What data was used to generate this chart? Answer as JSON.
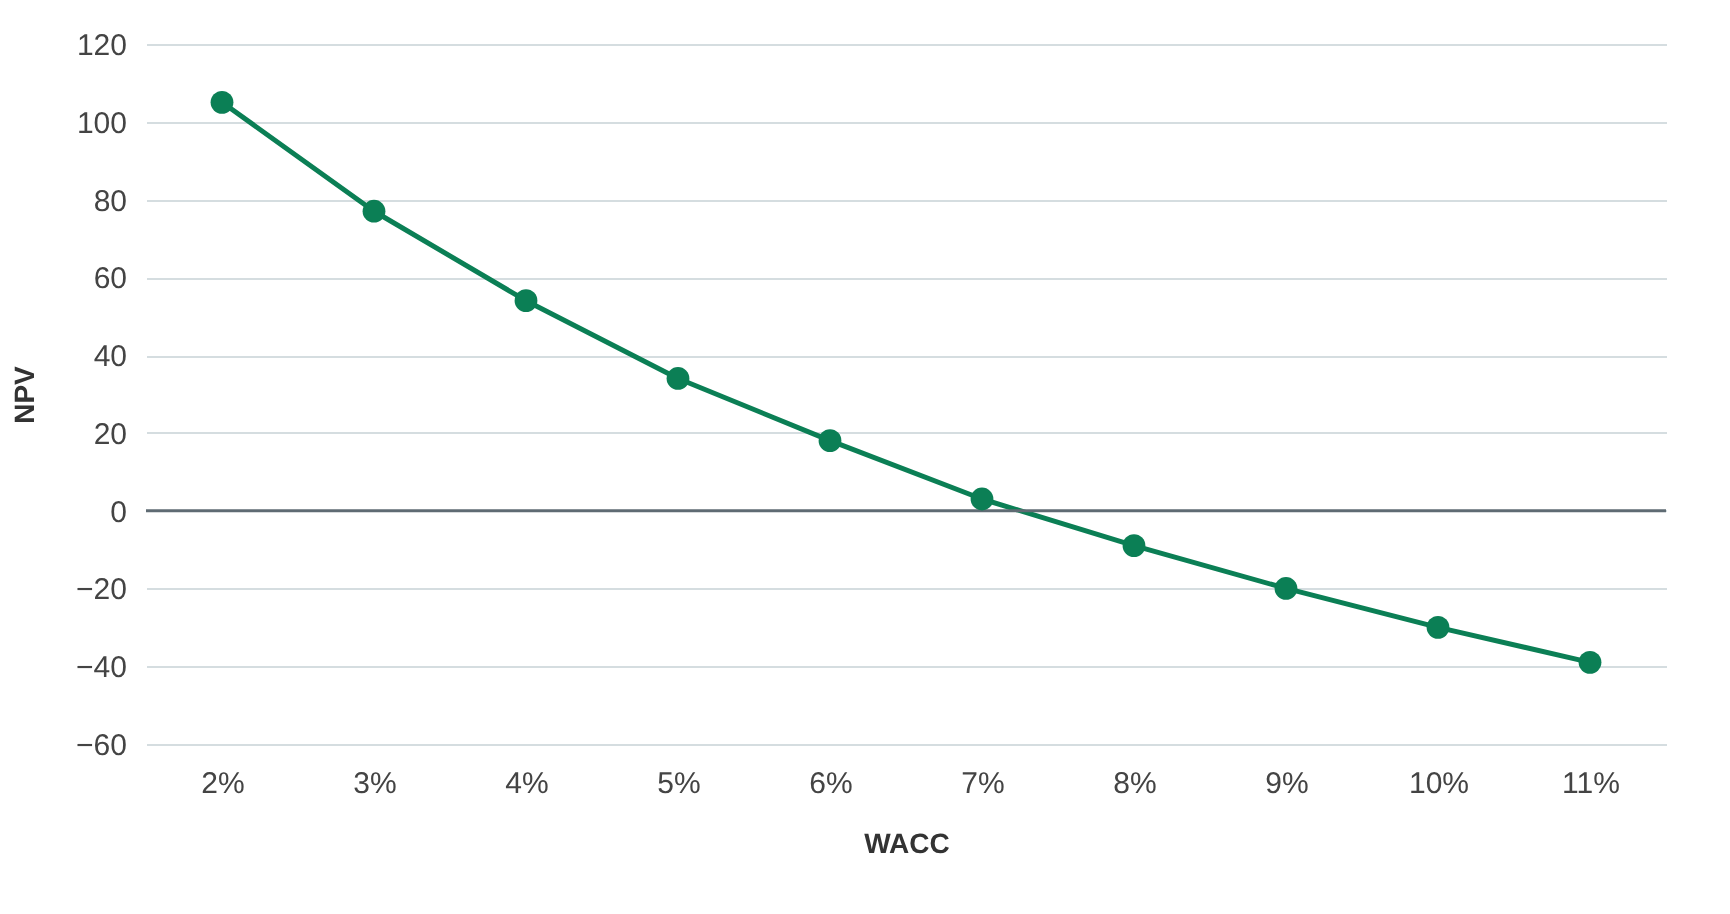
{
  "chart_data": {
    "type": "line",
    "xlabel": "WACC",
    "ylabel": "NPV",
    "categories": [
      "2%",
      "3%",
      "4%",
      "5%",
      "6%",
      "7%",
      "8%",
      "9%",
      "10%",
      "11%"
    ],
    "series": [
      {
        "color": "#0b7f55",
        "values": [
          105,
          77,
          54,
          34,
          18,
          3,
          -9,
          -20,
          -30,
          -39
        ]
      }
    ],
    "ylim": [
      -60,
      120
    ],
    "yticks": [
      -60,
      -40,
      -20,
      0,
      20,
      40,
      60,
      80,
      100,
      120
    ],
    "ref_lines": [
      {
        "axis": "y",
        "value": 0,
        "color": "#5f6b73"
      }
    ],
    "grid": "y",
    "marker": "circle",
    "line_style": "solid",
    "legend": false
  }
}
